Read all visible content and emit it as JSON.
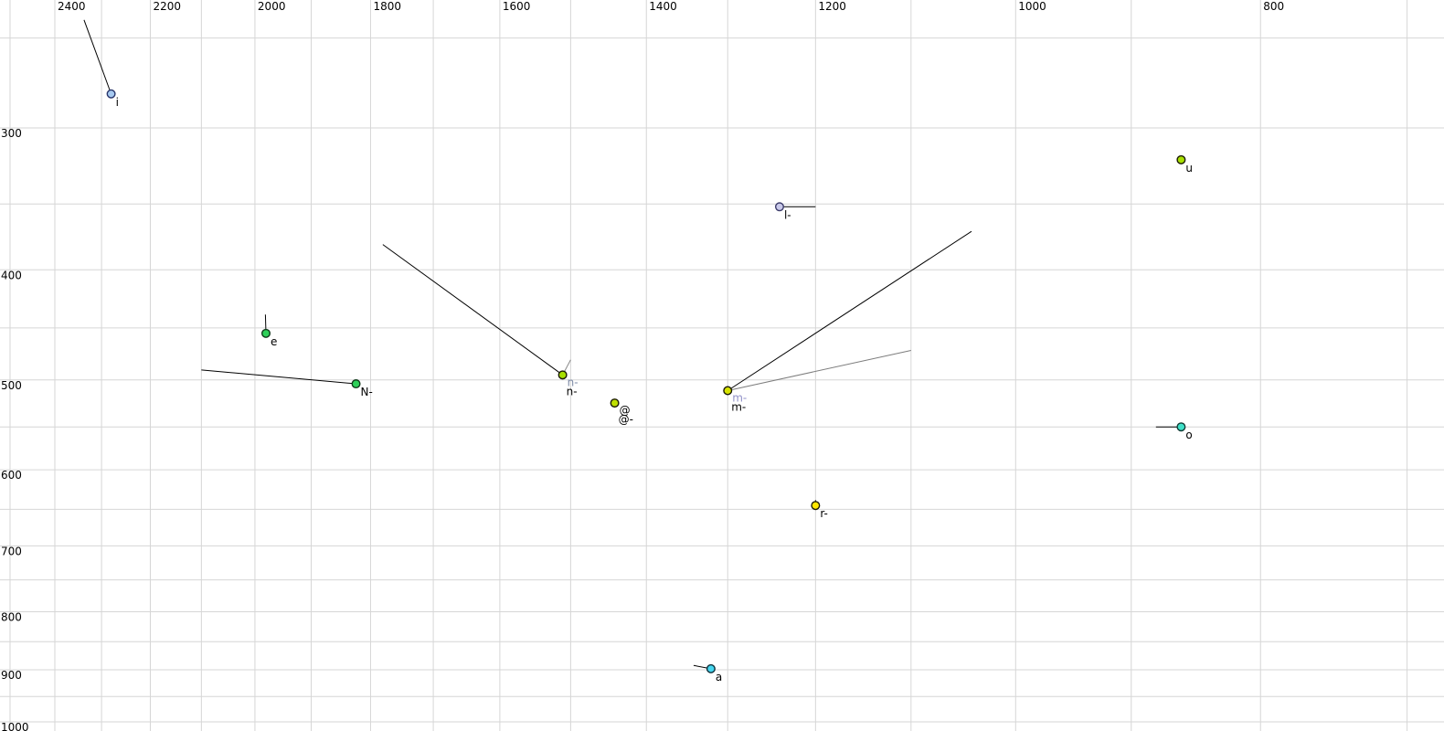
{
  "chart_data": {
    "type": "scatter",
    "title": "",
    "description": "Vowel formant plot: F2 (Hz) on reversed log x-axis at top, F1 (Hz) on log y-axis at left, vowel tokens with trajectory lines",
    "x_axis": {
      "label": "",
      "unit": "Hz",
      "scale": "log",
      "direction": "descending",
      "position": "top",
      "tick_values": [
        2400,
        2200,
        2000,
        1800,
        1600,
        1400,
        1200,
        1000,
        800
      ],
      "gridline_values": [
        2500,
        2400,
        2300,
        2200,
        2100,
        2000,
        1900,
        1800,
        1700,
        1600,
        1500,
        1400,
        1300,
        1200,
        1100,
        1000,
        900,
        800,
        700
      ],
      "visible_range": [
        2520,
        680
      ]
    },
    "y_axis": {
      "label": "",
      "unit": "Hz",
      "scale": "log",
      "direction": "ascending-downward",
      "position": "left",
      "tick_values": [
        300,
        400,
        500,
        600,
        700,
        800,
        900,
        1000
      ],
      "gridline_values": [
        250,
        300,
        350,
        400,
        450,
        500,
        550,
        600,
        650,
        700,
        750,
        800,
        850,
        900,
        950,
        1000
      ],
      "visible_range": [
        232,
        1018
      ]
    },
    "style": {
      "background": "#ffffff",
      "gridline_color": "#d6d6d6",
      "tick_label_color": "#000000",
      "trajectory_black": "#000000",
      "trajectory_grey": "#7d7d7d",
      "point_radius": 4.3
    },
    "points": [
      {
        "id": "i",
        "f2": 2280,
        "f1": 280,
        "fill": "#a6c9f0",
        "stroke": "#27346a",
        "labels": [
          {
            "text": "i",
            "color": "#000000"
          }
        ],
        "lines": [
          {
            "f2": 2337,
            "f1": 241,
            "color": "#000000"
          }
        ]
      },
      {
        "id": "u",
        "f2": 860,
        "f1": 320,
        "fill": "#a8e000",
        "stroke": "#1a1a00",
        "labels": [
          {
            "text": "u",
            "color": "#000000"
          }
        ],
        "lines": []
      },
      {
        "id": "l",
        "f2": 1240,
        "f1": 352,
        "fill": "#c9c9ea",
        "stroke": "#3d3d6b",
        "labels": [
          {
            "text": "l-",
            "color": "#000000"
          }
        ],
        "lines": [
          {
            "f2": 1200,
            "f1": 352,
            "color": "#000000"
          }
        ]
      },
      {
        "id": "e",
        "f2": 1980,
        "f1": 455,
        "fill": "#2ed059",
        "stroke": "#103a1a",
        "labels": [
          {
            "text": "e",
            "color": "#000000"
          }
        ],
        "lines": [
          {
            "f2": 1981,
            "f1": 438,
            "color": "#000000"
          }
        ]
      },
      {
        "id": "N",
        "f2": 1824,
        "f1": 504,
        "fill": "#2ed059",
        "stroke": "#103a1a",
        "labels": [
          {
            "text": "N-",
            "color": "#000000"
          }
        ],
        "lines": [
          {
            "f2": 2100,
            "f1": 490,
            "color": "#000000"
          }
        ]
      },
      {
        "id": "n",
        "f2": 1511,
        "f1": 495,
        "fill": "#a8e000",
        "stroke": "#1a1a00",
        "labels": [
          {
            "text": "n-",
            "color": "#7e8ba6"
          },
          {
            "text": "n-",
            "color": "#000000"
          }
        ],
        "lines": [
          {
            "f2": 1780,
            "f1": 380,
            "color": "#000000"
          },
          {
            "f2": 1500,
            "f1": 480,
            "color": "#8a8a8a"
          }
        ]
      },
      {
        "id": "schwa",
        "f2": 1441,
        "f1": 524,
        "fill": "#bfe000",
        "stroke": "#1a1a00",
        "labels": [
          {
            "text": "@",
            "color": "#000000"
          },
          {
            "text": "@-",
            "color": "#000000"
          }
        ],
        "lines": []
      },
      {
        "id": "m",
        "f2": 1300,
        "f1": 511,
        "fill": "#d6e300",
        "stroke": "#1a1a00",
        "labels": [
          {
            "text": "m-",
            "color": "#9191c8"
          },
          {
            "text": "m-",
            "color": "#000000"
          }
        ],
        "lines": [
          {
            "f2": 1041,
            "f1": 370,
            "color": "#000000"
          },
          {
            "f2": 1100,
            "f1": 471,
            "color": "#7d7d7d"
          }
        ]
      },
      {
        "id": "o",
        "f2": 860,
        "f1": 550,
        "fill": "#3fe0c8",
        "stroke": "#0d3a33",
        "labels": [
          {
            "text": "o",
            "color": "#000000"
          }
        ],
        "lines": [
          {
            "f2": 880,
            "f1": 550,
            "color": "#000000"
          }
        ]
      },
      {
        "id": "r",
        "f2": 1200,
        "f1": 645,
        "fill": "#ffe800",
        "stroke": "#1a1a00",
        "labels": [
          {
            "text": "r-",
            "color": "#000000"
          }
        ],
        "lines": [
          {
            "f2": 1200,
            "f1": 638,
            "color": "#000000"
          }
        ]
      },
      {
        "id": "a",
        "f2": 1320,
        "f1": 898,
        "fill": "#46d7f0",
        "stroke": "#0d2f3a",
        "labels": [
          {
            "text": "a",
            "color": "#000000"
          }
        ],
        "lines": [
          {
            "f2": 1341,
            "f1": 892,
            "color": "#000000"
          }
        ]
      }
    ]
  }
}
